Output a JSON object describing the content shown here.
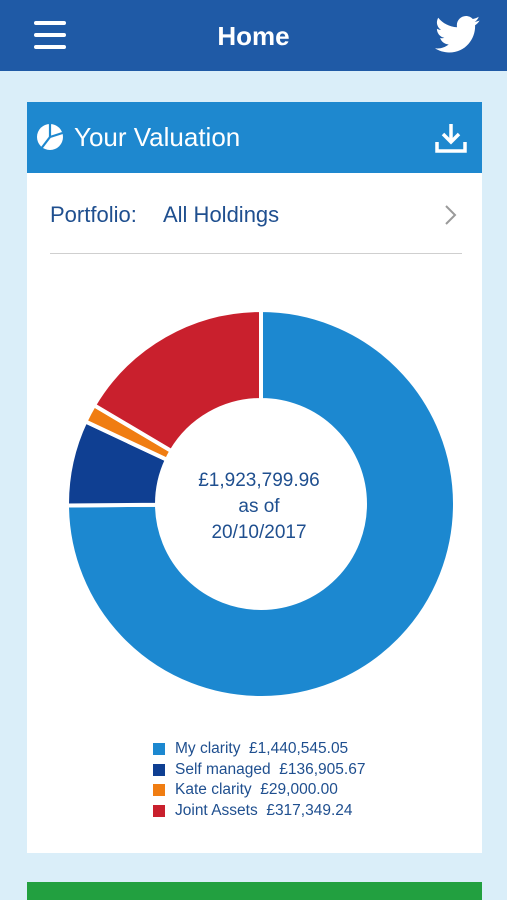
{
  "header": {
    "title": "Home",
    "menu_icon": "menu-icon",
    "social_icon": "twitter-icon",
    "bg_color": "#1f5aa6"
  },
  "valuation": {
    "title": "Your Valuation",
    "title_icon": "pie-chart-icon",
    "action_icon": "download-icon",
    "header_color": "#1e88cf",
    "portfolio_label": "Portfolio:",
    "portfolio_value": "All Holdings",
    "total_value": "£1,923,799.96",
    "as_of_label": "as of",
    "as_of_date": "20/10/2017"
  },
  "chart_data": {
    "type": "pie",
    "categories": [
      "My clarity",
      "Self managed",
      "Kate clarity",
      "Joint Assets"
    ],
    "values": [
      1440545.05,
      136905.67,
      29000.0,
      317349.24
    ],
    "labels": [
      "£1,440,545.05",
      "£136,905.67",
      "£29,000.00",
      "£317,349.24"
    ],
    "colors": [
      "#1c88d0",
      "#0f3f92",
      "#f07d12",
      "#c9202d"
    ],
    "legend_position": "bottom"
  },
  "bottom_bar_color": "#22a040"
}
